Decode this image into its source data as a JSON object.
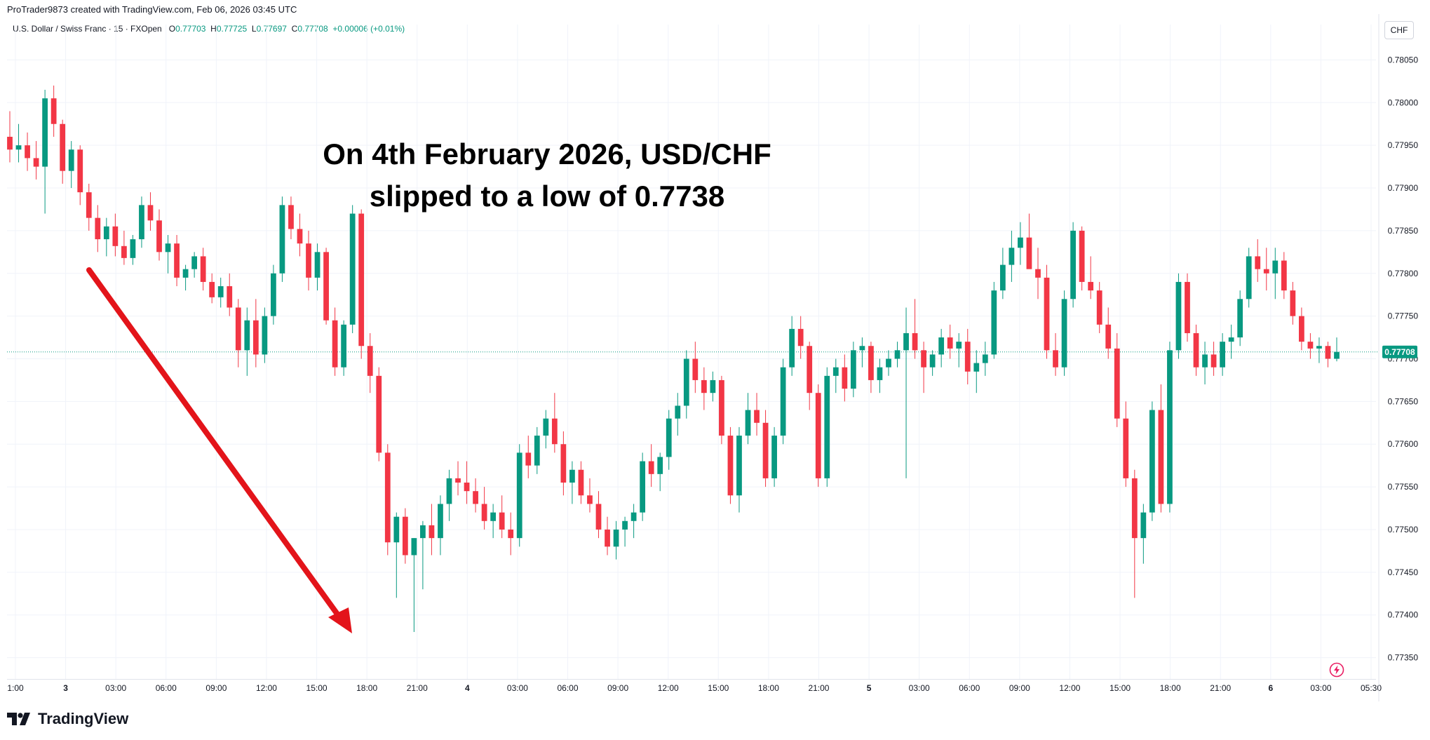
{
  "header": {
    "attribution": "ProTrader9873 created with TradingView.com, Feb 06, 2026 03:45 UTC"
  },
  "symbol": {
    "name": "U.S. Dollar / Swiss Franc · 15 · FXOpen",
    "o_label": "O",
    "o_value": "0.77703",
    "h_label": "H",
    "h_value": "0.77725",
    "l_label": "L",
    "l_value": "0.77697",
    "c_label": "C",
    "c_value": "0.77708",
    "change": "+0.00006 (+0.01%)"
  },
  "currency": "CHF",
  "annotation": {
    "line1": "On 4th February 2026, USD/CHF",
    "line2": "slipped to a low of 0.7738"
  },
  "brand": {
    "name": "TradingView"
  },
  "colors": {
    "up": "#089981",
    "down": "#f23645",
    "arrow": "#e3141a",
    "grid": "#f0f3fa",
    "price_line": "#089981"
  },
  "icons": {
    "brand": "tradingview-logo",
    "bolt": "lightning-bolt-icon"
  },
  "chart_data": {
    "type": "candlestick",
    "ylim": [
      0.77325,
      0.78075
    ],
    "y_ticks": [
      "0.78050",
      "0.78000",
      "0.77950",
      "0.77900",
      "0.77850",
      "0.77800",
      "0.77750",
      "0.77700",
      "0.77650",
      "0.77600",
      "0.77550",
      "0.77500",
      "0.77450",
      "0.77400",
      "0.77350"
    ],
    "x_ticks": [
      "1:00",
      "3",
      "03:00",
      "06:00",
      "09:00",
      "12:00",
      "15:00",
      "18:00",
      "21:00",
      "4",
      "03:00",
      "06:00",
      "09:00",
      "12:00",
      "15:00",
      "18:00",
      "21:00",
      "5",
      "03:00",
      "06:00",
      "09:00",
      "12:00",
      "15:00",
      "18:00",
      "21:00",
      "6",
      "03:00",
      "05:30"
    ],
    "last_price": "0.77708",
    "last_price_value": 0.77708,
    "candles_ohlc": [
      [
        0.7796,
        0.7799,
        0.7793,
        0.77945
      ],
      [
        0.77945,
        0.77975,
        0.7793,
        0.7795
      ],
      [
        0.7795,
        0.77965,
        0.7792,
        0.77935
      ],
      [
        0.77935,
        0.77955,
        0.7791,
        0.77925
      ],
      [
        0.77925,
        0.78015,
        0.7787,
        0.78005
      ],
      [
        0.78005,
        0.7802,
        0.7796,
        0.77975
      ],
      [
        0.77975,
        0.7798,
        0.77905,
        0.7792
      ],
      [
        0.7792,
        0.77955,
        0.779,
        0.77945
      ],
      [
        0.77945,
        0.7795,
        0.7788,
        0.77895
      ],
      [
        0.77895,
        0.77905,
        0.7785,
        0.77865
      ],
      [
        0.77865,
        0.7788,
        0.77825,
        0.7784
      ],
      [
        0.7784,
        0.77865,
        0.7782,
        0.77855
      ],
      [
        0.77855,
        0.7787,
        0.7782,
        0.77832
      ],
      [
        0.77832,
        0.7785,
        0.7781,
        0.77818
      ],
      [
        0.77818,
        0.77845,
        0.7781,
        0.7784
      ],
      [
        0.7784,
        0.7789,
        0.7783,
        0.7788
      ],
      [
        0.7788,
        0.77895,
        0.7785,
        0.77862
      ],
      [
        0.77862,
        0.77875,
        0.77815,
        0.77825
      ],
      [
        0.77825,
        0.77845,
        0.778,
        0.77835
      ],
      [
        0.77835,
        0.77845,
        0.77785,
        0.77795
      ],
      [
        0.77795,
        0.7781,
        0.7778,
        0.77805
      ],
      [
        0.77805,
        0.77825,
        0.77795,
        0.7782
      ],
      [
        0.7782,
        0.7783,
        0.7778,
        0.7779
      ],
      [
        0.7779,
        0.778,
        0.77765,
        0.77772
      ],
      [
        0.77772,
        0.77795,
        0.7776,
        0.77785
      ],
      [
        0.77785,
        0.778,
        0.7775,
        0.7776
      ],
      [
        0.7776,
        0.7777,
        0.7769,
        0.7771
      ],
      [
        0.7771,
        0.7776,
        0.7768,
        0.77745
      ],
      [
        0.77745,
        0.7777,
        0.7769,
        0.77705
      ],
      [
        0.77705,
        0.7776,
        0.77695,
        0.7775
      ],
      [
        0.7775,
        0.7781,
        0.7774,
        0.778
      ],
      [
        0.778,
        0.7789,
        0.7779,
        0.7788
      ],
      [
        0.7788,
        0.7789,
        0.7784,
        0.77852
      ],
      [
        0.77852,
        0.7787,
        0.7782,
        0.77835
      ],
      [
        0.77835,
        0.7785,
        0.7778,
        0.77795
      ],
      [
        0.77795,
        0.77835,
        0.7778,
        0.77825
      ],
      [
        0.77825,
        0.7783,
        0.7774,
        0.77745
      ],
      [
        0.77745,
        0.7776,
        0.7768,
        0.7769
      ],
      [
        0.7769,
        0.77745,
        0.7768,
        0.7774
      ],
      [
        0.7774,
        0.7788,
        0.7773,
        0.7787
      ],
      [
        0.7787,
        0.77875,
        0.777,
        0.77715
      ],
      [
        0.77715,
        0.7773,
        0.7766,
        0.7768
      ],
      [
        0.7768,
        0.7769,
        0.7758,
        0.7759
      ],
      [
        0.7759,
        0.776,
        0.7747,
        0.77485
      ],
      [
        0.77485,
        0.7752,
        0.7742,
        0.77515
      ],
      [
        0.77515,
        0.77525,
        0.7746,
        0.7747
      ],
      [
        0.7747,
        0.7749,
        0.7738,
        0.7749
      ],
      [
        0.7749,
        0.7751,
        0.7743,
        0.77505
      ],
      [
        0.77505,
        0.7753,
        0.7747,
        0.7749
      ],
      [
        0.7749,
        0.7754,
        0.7747,
        0.7753
      ],
      [
        0.7753,
        0.7757,
        0.7751,
        0.7756
      ],
      [
        0.7756,
        0.7758,
        0.7754,
        0.77555
      ],
      [
        0.77555,
        0.7758,
        0.7753,
        0.77545
      ],
      [
        0.77545,
        0.7756,
        0.7752,
        0.7753
      ],
      [
        0.7753,
        0.7755,
        0.775,
        0.7751
      ],
      [
        0.7751,
        0.7753,
        0.7749,
        0.7752
      ],
      [
        0.7752,
        0.7754,
        0.7749,
        0.775
      ],
      [
        0.775,
        0.7752,
        0.7747,
        0.7749
      ],
      [
        0.7749,
        0.776,
        0.7748,
        0.7759
      ],
      [
        0.7759,
        0.7761,
        0.7756,
        0.77575
      ],
      [
        0.77575,
        0.7762,
        0.77565,
        0.7761
      ],
      [
        0.7761,
        0.7764,
        0.77595,
        0.7763
      ],
      [
        0.7763,
        0.7766,
        0.7759,
        0.776
      ],
      [
        0.776,
        0.77615,
        0.7754,
        0.77555
      ],
      [
        0.77555,
        0.7758,
        0.7753,
        0.7757
      ],
      [
        0.7757,
        0.7758,
        0.7753,
        0.7754
      ],
      [
        0.7754,
        0.7756,
        0.7752,
        0.7753
      ],
      [
        0.7753,
        0.77545,
        0.7749,
        0.775
      ],
      [
        0.775,
        0.77515,
        0.7747,
        0.7748
      ],
      [
        0.7748,
        0.7751,
        0.77465,
        0.775
      ],
      [
        0.775,
        0.77515,
        0.7748,
        0.7751
      ],
      [
        0.7751,
        0.7753,
        0.7749,
        0.7752
      ],
      [
        0.7752,
        0.7759,
        0.7751,
        0.7758
      ],
      [
        0.7758,
        0.776,
        0.7755,
        0.77565
      ],
      [
        0.77565,
        0.7759,
        0.77545,
        0.77585
      ],
      [
        0.77585,
        0.7764,
        0.7757,
        0.7763
      ],
      [
        0.7763,
        0.7766,
        0.7761,
        0.77645
      ],
      [
        0.77645,
        0.7771,
        0.7763,
        0.777
      ],
      [
        0.777,
        0.7772,
        0.7766,
        0.77675
      ],
      [
        0.77675,
        0.7769,
        0.7764,
        0.7766
      ],
      [
        0.7766,
        0.77685,
        0.7765,
        0.77675
      ],
      [
        0.77675,
        0.7768,
        0.776,
        0.7761
      ],
      [
        0.7761,
        0.7762,
        0.7753,
        0.7754
      ],
      [
        0.7754,
        0.7762,
        0.7752,
        0.7761
      ],
      [
        0.7761,
        0.7766,
        0.776,
        0.7764
      ],
      [
        0.7764,
        0.7766,
        0.7761,
        0.77625
      ],
      [
        0.77625,
        0.7764,
        0.7755,
        0.7756
      ],
      [
        0.7756,
        0.7762,
        0.7755,
        0.7761
      ],
      [
        0.7761,
        0.777,
        0.776,
        0.7769
      ],
      [
        0.7769,
        0.7775,
        0.7768,
        0.77735
      ],
      [
        0.77735,
        0.7775,
        0.777,
        0.77715
      ],
      [
        0.77715,
        0.7772,
        0.7764,
        0.7766
      ],
      [
        0.7766,
        0.7767,
        0.7755,
        0.7756
      ],
      [
        0.7756,
        0.7769,
        0.7755,
        0.7768
      ],
      [
        0.7768,
        0.777,
        0.7766,
        0.7769
      ],
      [
        0.7769,
        0.77705,
        0.7765,
        0.77665
      ],
      [
        0.77665,
        0.7772,
        0.77655,
        0.7771
      ],
      [
        0.7771,
        0.77725,
        0.7769,
        0.77715
      ],
      [
        0.77715,
        0.7772,
        0.7766,
        0.77675
      ],
      [
        0.77675,
        0.777,
        0.7766,
        0.7769
      ],
      [
        0.7769,
        0.7771,
        0.7768,
        0.777
      ],
      [
        0.777,
        0.7772,
        0.7769,
        0.7771
      ],
      [
        0.7771,
        0.7776,
        0.7756,
        0.7773
      ],
      [
        0.7773,
        0.7777,
        0.777,
        0.7771
      ],
      [
        0.7771,
        0.7772,
        0.7766,
        0.7769
      ],
      [
        0.7769,
        0.7771,
        0.7768,
        0.77705
      ],
      [
        0.77705,
        0.77735,
        0.7769,
        0.77725
      ],
      [
        0.77725,
        0.7774,
        0.777,
        0.77712
      ],
      [
        0.77712,
        0.7773,
        0.7769,
        0.7772
      ],
      [
        0.7772,
        0.77735,
        0.7767,
        0.77685
      ],
      [
        0.77685,
        0.7771,
        0.7766,
        0.77695
      ],
      [
        0.77695,
        0.7772,
        0.7768,
        0.77705
      ],
      [
        0.77705,
        0.7779,
        0.777,
        0.7778
      ],
      [
        0.7778,
        0.7783,
        0.7777,
        0.7781
      ],
      [
        0.7781,
        0.7785,
        0.7779,
        0.7783
      ],
      [
        0.7783,
        0.7786,
        0.7781,
        0.77842
      ],
      [
        0.77842,
        0.7787,
        0.7782,
        0.77805
      ],
      [
        0.77805,
        0.7783,
        0.7777,
        0.77795
      ],
      [
        0.77795,
        0.7781,
        0.777,
        0.7771
      ],
      [
        0.7771,
        0.7773,
        0.7768,
        0.7769
      ],
      [
        0.7769,
        0.7778,
        0.7768,
        0.7777
      ],
      [
        0.7777,
        0.7786,
        0.7776,
        0.7785
      ],
      [
        0.7785,
        0.77855,
        0.7778,
        0.7779
      ],
      [
        0.7779,
        0.7782,
        0.7777,
        0.7778
      ],
      [
        0.7778,
        0.7779,
        0.7773,
        0.7774
      ],
      [
        0.7774,
        0.7776,
        0.777,
        0.77712
      ],
      [
        0.77712,
        0.7773,
        0.7762,
        0.7763
      ],
      [
        0.7763,
        0.7765,
        0.7755,
        0.7756
      ],
      [
        0.7756,
        0.7757,
        0.7742,
        0.7749
      ],
      [
        0.7749,
        0.7753,
        0.7746,
        0.7752
      ],
      [
        0.7752,
        0.7765,
        0.7751,
        0.7764
      ],
      [
        0.7764,
        0.7767,
        0.7752,
        0.7753
      ],
      [
        0.7753,
        0.7772,
        0.7752,
        0.7771
      ],
      [
        0.7771,
        0.778,
        0.777,
        0.7779
      ],
      [
        0.7779,
        0.778,
        0.7772,
        0.7773
      ],
      [
        0.7773,
        0.7774,
        0.7768,
        0.7769
      ],
      [
        0.7769,
        0.7772,
        0.7767,
        0.77705
      ],
      [
        0.77705,
        0.7772,
        0.7768,
        0.7769
      ],
      [
        0.7769,
        0.7773,
        0.7768,
        0.7772
      ],
      [
        0.7772,
        0.7774,
        0.777,
        0.77725
      ],
      [
        0.77725,
        0.7778,
        0.77715,
        0.7777
      ],
      [
        0.7777,
        0.7783,
        0.7776,
        0.7782
      ],
      [
        0.7782,
        0.7784,
        0.7779,
        0.77805
      ],
      [
        0.77805,
        0.7783,
        0.7778,
        0.778
      ],
      [
        0.778,
        0.7783,
        0.7777,
        0.77815
      ],
      [
        0.77815,
        0.77825,
        0.7777,
        0.7778
      ],
      [
        0.7778,
        0.7779,
        0.7774,
        0.7775
      ],
      [
        0.7775,
        0.7776,
        0.7771,
        0.7772
      ],
      [
        0.7772,
        0.7773,
        0.777,
        0.77712
      ],
      [
        0.77712,
        0.77725,
        0.77695,
        0.77715
      ],
      [
        0.77715,
        0.7772,
        0.7769,
        0.777
      ],
      [
        0.777,
        0.77725,
        0.77697,
        0.77708
      ]
    ]
  }
}
